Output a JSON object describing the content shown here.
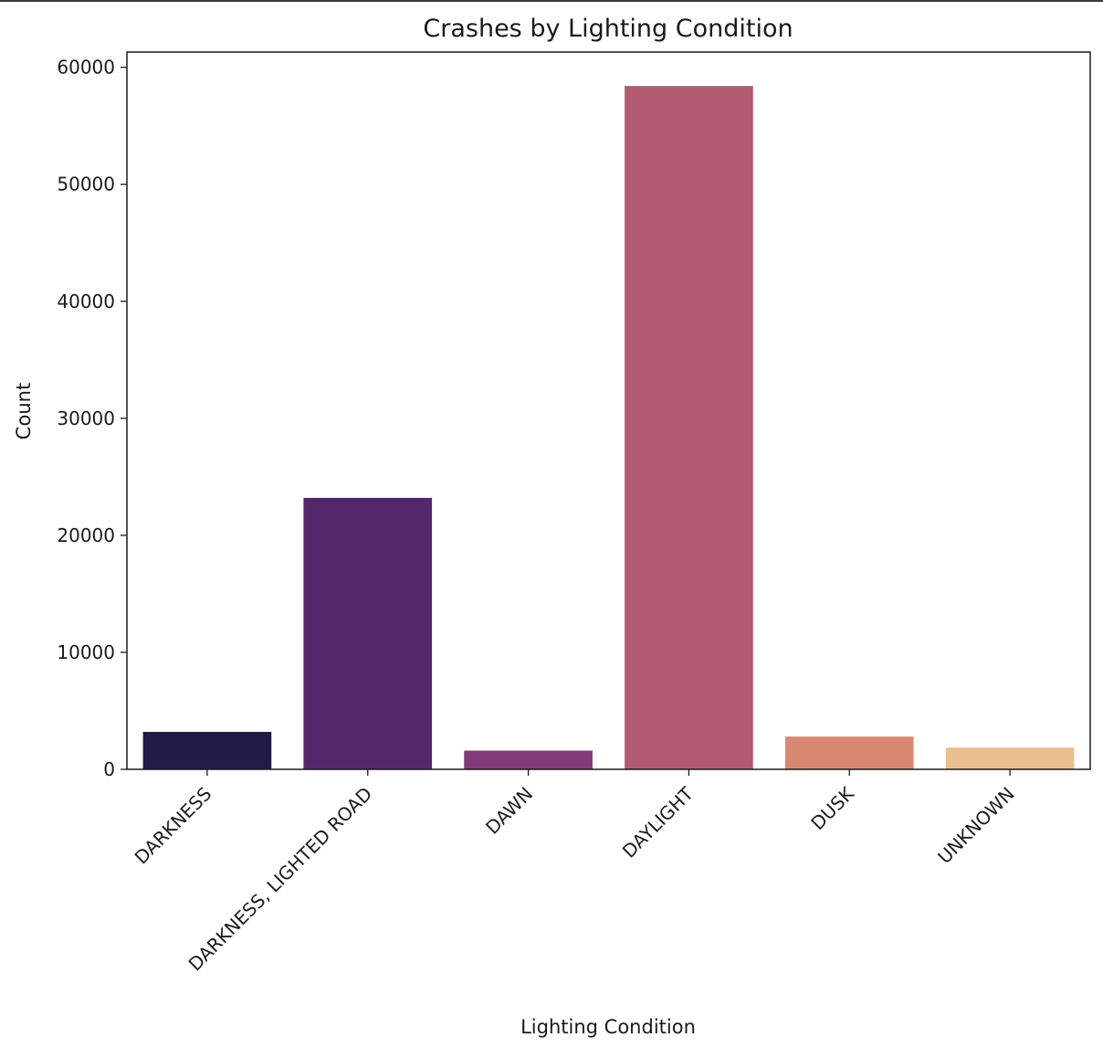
{
  "chart_data": {
    "type": "bar",
    "title": "Crashes by Lighting Condition",
    "xlabel": "Lighting Condition",
    "ylabel": "Count",
    "categories": [
      "DARKNESS",
      "DARKNESS, LIGHTED ROAD",
      "DAWN",
      "DAYLIGHT",
      "DUSK",
      "UNKNOWN"
    ],
    "values": [
      3200,
      23200,
      1600,
      58400,
      2800,
      1850
    ],
    "colors": [
      "#221a46",
      "#53276b",
      "#823c79",
      "#b25b72",
      "#d98874",
      "#ebbe91"
    ],
    "ylim": [
      0,
      61300
    ],
    "yticks": [
      0,
      10000,
      20000,
      30000,
      40000,
      50000,
      60000
    ],
    "ytick_labels": [
      "0",
      "10000",
      "20000",
      "30000",
      "40000",
      "50000",
      "60000"
    ],
    "grid": false,
    "legend": "none"
  }
}
